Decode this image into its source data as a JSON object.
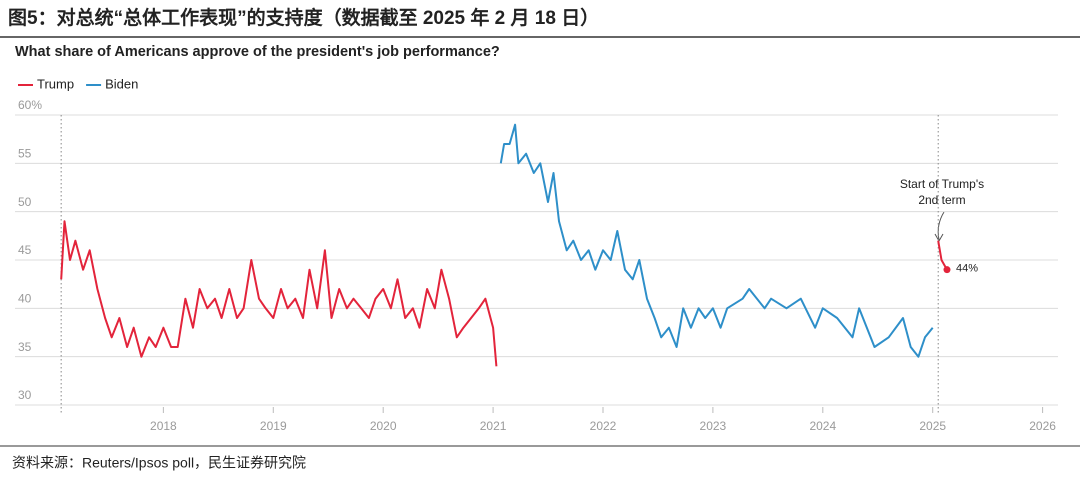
{
  "chart_data": {
    "type": "line",
    "figure_title": "图5：对总统“总体工作表现”的支持度（数据截至 2025 年 2 月 18 日）",
    "title": "What share of Americans approve of the president's job performance?",
    "annotation": [
      "Start of Trump's",
      "2nd term"
    ],
    "source": "资料来源：Reuters/Ipsos poll，民生证券研究院",
    "ylim": [
      30,
      60
    ],
    "yticks": [
      30,
      35,
      40,
      45,
      50,
      55,
      {
        "value": 60,
        "label": "60%"
      }
    ],
    "xlim": [
      2016.65,
      2026.14
    ],
    "xticks": [
      2018,
      2019,
      2020,
      2021,
      2022,
      2023,
      2024,
      2025,
      2026
    ],
    "grid": true,
    "legend": "top-left",
    "series": [
      {
        "name": "Trump",
        "color": "#e3243b",
        "x": [
          2017.07,
          2017.1,
          2017.15,
          2017.2,
          2017.27,
          2017.33,
          2017.4,
          2017.47,
          2017.53,
          2017.6,
          2017.67,
          2017.73,
          2017.8,
          2017.87,
          2017.93,
          2018.0,
          2018.07,
          2018.13,
          2018.2,
          2018.27,
          2018.33,
          2018.4,
          2018.47,
          2018.53,
          2018.6,
          2018.67,
          2018.73,
          2018.8,
          2018.87,
          2018.93,
          2019.0,
          2019.07,
          2019.13,
          2019.2,
          2019.27,
          2019.33,
          2019.4,
          2019.47,
          2019.53,
          2019.6,
          2019.67,
          2019.73,
          2019.8,
          2019.87,
          2019.93,
          2020.0,
          2020.07,
          2020.13,
          2020.2,
          2020.27,
          2020.33,
          2020.4,
          2020.47,
          2020.53,
          2020.6,
          2020.67,
          2020.73,
          2020.8,
          2020.87,
          2020.93,
          2021.0,
          2021.03,
          2023.0,
          2025.05,
          2025.08,
          2025.13
        ],
        "values": [
          43,
          49,
          45,
          47,
          44,
          46,
          42,
          39,
          37,
          39,
          36,
          38,
          35,
          37,
          36,
          38,
          36,
          36,
          41,
          38,
          42,
          40,
          41,
          39,
          42,
          39,
          40,
          45,
          41,
          40,
          39,
          42,
          40,
          41,
          39,
          44,
          40,
          46,
          39,
          42,
          40,
          41,
          40,
          39,
          41,
          42,
          40,
          43,
          39,
          40,
          38,
          42,
          40,
          44,
          41,
          37,
          38,
          39,
          40,
          41,
          38,
          34,
          null,
          47,
          45,
          44
        ],
        "value_labels": [
          null,
          null,
          null,
          null,
          null,
          null,
          null,
          null,
          null,
          null,
          null,
          null,
          null,
          null,
          null,
          null,
          null,
          null,
          null,
          null,
          null,
          null,
          null,
          null,
          null,
          null,
          null,
          null,
          null,
          null,
          null,
          null,
          null,
          null,
          null,
          null,
          null,
          null,
          null,
          null,
          null,
          null,
          null,
          null,
          null,
          null,
          null,
          null,
          null,
          null,
          null,
          null,
          null,
          null,
          null,
          null,
          null,
          null,
          null,
          null,
          null,
          null,
          null,
          null,
          null,
          "44%"
        ]
      },
      {
        "name": "Biden",
        "color": "#2e8fc9",
        "x": [
          2021.07,
          2021.1,
          2021.15,
          2021.2,
          2021.23,
          2021.3,
          2021.37,
          2021.43,
          2021.5,
          2021.55,
          2021.6,
          2021.67,
          2021.73,
          2021.8,
          2021.87,
          2021.93,
          2022.0,
          2022.07,
          2022.13,
          2022.2,
          2022.27,
          2022.33,
          2022.4,
          2022.47,
          2022.53,
          2022.6,
          2022.67,
          2022.73,
          2022.8,
          2022.87,
          2022.93,
          2023.0,
          2023.07,
          2023.13,
          2023.27,
          2023.33,
          2023.47,
          2023.53,
          2023.67,
          2023.8,
          2023.93,
          2024.0,
          2024.13,
          2024.27,
          2024.33,
          2024.47,
          2024.6,
          2024.73,
          2024.8,
          2024.87,
          2024.93,
          2025.0
        ],
        "values": [
          55,
          57,
          57,
          59,
          55,
          56,
          54,
          55,
          51,
          54,
          49,
          46,
          47,
          45,
          46,
          44,
          46,
          45,
          48,
          44,
          43,
          45,
          41,
          39,
          37,
          38,
          36,
          40,
          38,
          40,
          39,
          40,
          38,
          40,
          41,
          42,
          40,
          41,
          40,
          41,
          38,
          40,
          39,
          37,
          40,
          36,
          37,
          39,
          36,
          35,
          37,
          38
        ]
      }
    ]
  }
}
